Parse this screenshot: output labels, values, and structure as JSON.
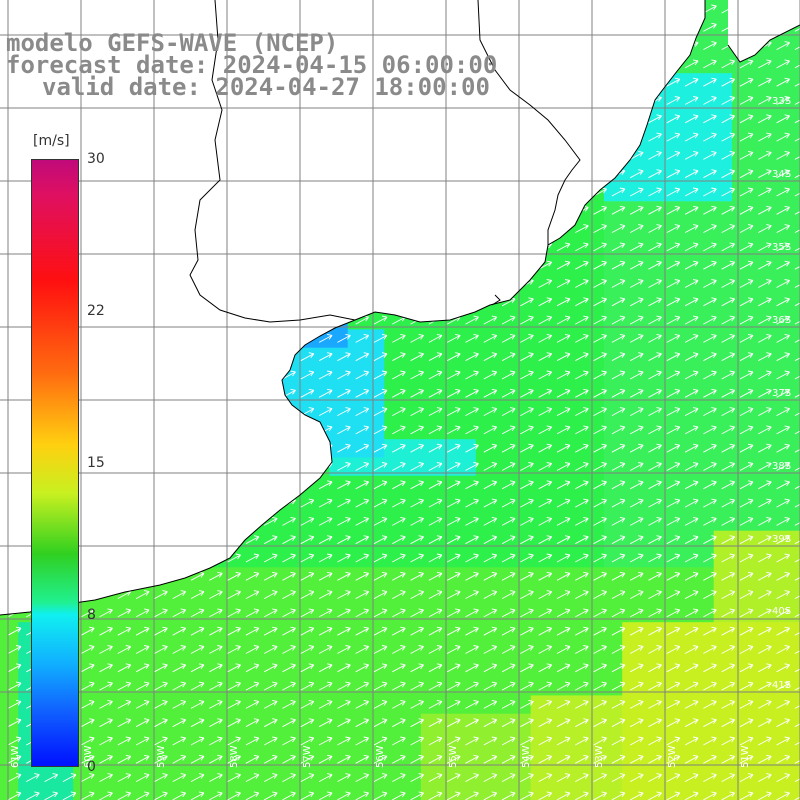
{
  "title": {
    "line1": "modelo GEFS-WAVE (NCEP)",
    "line2": "forecast date: 2024-04-15 06:00:00",
    "line3": "valid date: 2024-04-27 18:00:00"
  },
  "colorbar": {
    "unit": "[m/s]",
    "ticks": [
      "30",
      "22",
      "15",
      "8",
      "0"
    ],
    "colors": [
      "#c00a7a",
      "#ff1010",
      "#ffd010",
      "#30d020",
      "#10f0f0",
      "#0010ff"
    ]
  },
  "lat_labels": [
    "33S",
    "34S",
    "35S",
    "36S",
    "37S",
    "38S",
    "39S",
    "40S",
    "41S"
  ],
  "lon_labels": [
    "61W",
    "60W",
    "59W",
    "58W",
    "57W",
    "56W",
    "55W",
    "54W",
    "53W",
    "52W",
    "51W"
  ],
  "colors": {
    "land": "#ffffff",
    "grid": "#808080",
    "coast": "#000000",
    "arrow": "#ffffff",
    "title": "#8a8a8a"
  }
}
